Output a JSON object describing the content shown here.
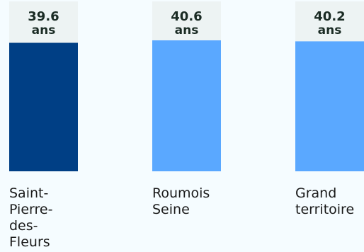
{
  "chart_data": {
    "type": "bar",
    "categories": [
      "Saint-\nPierre-\ndes-\nFleurs",
      "Roumois\nSeine",
      "Grand\nterritoire"
    ],
    "values": [
      39.6,
      40.6,
      40.2
    ],
    "value_labels": [
      "39.6",
      "40.6",
      "40.2"
    ],
    "unit": "ans",
    "ylim": [
      0,
      40.6
    ],
    "grid": false,
    "colors": {
      "highlight": "#003f85",
      "default": "#5aa8ff",
      "label_background": "#edf3f3",
      "background": "#f5fcff"
    },
    "highlight_index": 0
  }
}
